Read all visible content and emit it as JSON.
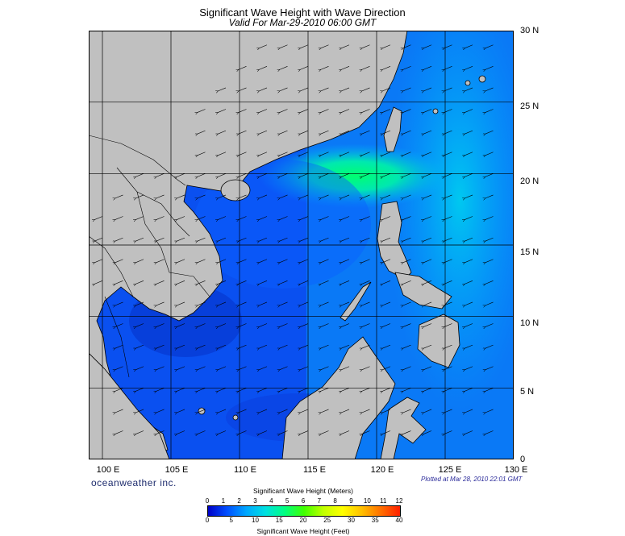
{
  "title": "Significant Wave Height with Wave Direction",
  "subtitle": "Valid For Mar-29-2010 06:00 GMT",
  "latitude_labels": [
    "30 N",
    "25 N",
    "20 N",
    "15 N",
    "10 N",
    "5 N",
    "0"
  ],
  "longitude_labels": [
    "100 E",
    "105 E",
    "110 E",
    "115 E",
    "120 E",
    "125 E",
    "130 E"
  ],
  "brand": "oceanweather inc.",
  "plotted": "Plotted at Mar 28, 2010 22:01 GMT",
  "scale": {
    "meters_title": "Significant Wave Height (Meters)",
    "meters_ticks": [
      "0",
      "1",
      "2",
      "3",
      "4",
      "5",
      "6",
      "7",
      "8",
      "9",
      "10",
      "11",
      "12"
    ],
    "feet_title": "Significant Wave Height (Feet)",
    "feet_ticks": [
      "0",
      "5",
      "10",
      "15",
      "20",
      "25",
      "30",
      "35",
      "40"
    ]
  },
  "colors": {
    "land": "#c0c0c0",
    "gradient": [
      "#0000c8",
      "#0050ff",
      "#00a8ff",
      "#00e0e0",
      "#00ff80",
      "#40ff00",
      "#c0ff00",
      "#ffff00",
      "#ffc000",
      "#ff7000",
      "#ff2000"
    ]
  },
  "map_extent": {
    "lon_min": 99,
    "lon_max": 130,
    "lat_min": 0,
    "lat_max": 30
  }
}
